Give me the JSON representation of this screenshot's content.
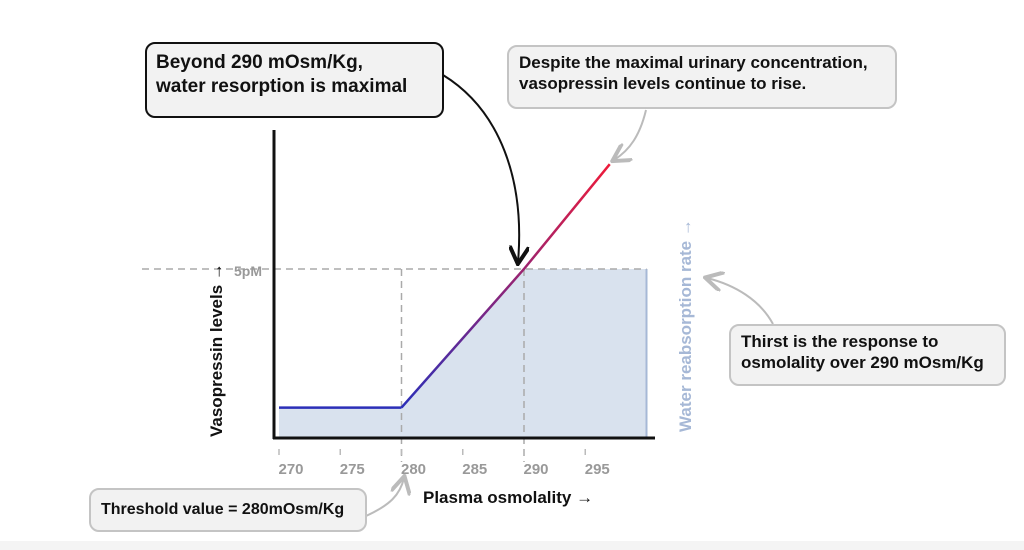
{
  "chart_data": {
    "type": "line",
    "xlabel": "Plasma osmolality →",
    "ylabel": "Vasopressin levels →",
    "y2label": "Water reabsorption rate →",
    "x_ticks": [
      "270",
      "275",
      "280",
      "285",
      "290",
      "295"
    ],
    "y_tick_label": "5pM",
    "xlim": [
      270,
      300
    ],
    "series": [
      {
        "values": [
          [
            270,
            0.9
          ],
          [
            280,
            0.9
          ],
          [
            290,
            5
          ],
          [
            297,
            8.1
          ]
        ],
        "colors": [
          "#2b2fb8",
          "#ee1b3a"
        ]
      }
    ],
    "reabsorption_area": [
      [
        270,
        0.9
      ],
      [
        280,
        0.9
      ],
      [
        290,
        5
      ],
      [
        300,
        5
      ]
    ],
    "area_color": "#d9e2ee",
    "reference_lines": {
      "x": [
        280,
        290
      ],
      "y": 5
    }
  },
  "annotations": {
    "maximal": [
      "Beyond 290 mOsm/Kg,",
      "water resorption is maximal"
    ],
    "rise": [
      "Despite the maximal urinary concentration,",
      "vasopressin levels continue to rise."
    ],
    "thirst": [
      "Thirst is the response to",
      "osmolality over 290 mOsm/Kg"
    ],
    "threshold": "Threshold value = 280mOsm/Kg"
  }
}
